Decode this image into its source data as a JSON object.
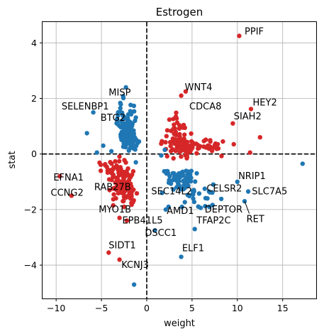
{
  "chart_data": {
    "type": "scatter",
    "title": "Estrogen",
    "xlabel": "weight",
    "ylabel": "stat",
    "xlim": [
      -11.5,
      18.7
    ],
    "ylim": [
      -5.2,
      4.75
    ],
    "xticks": [
      -10,
      -5,
      0,
      5,
      10,
      15
    ],
    "yticks": [
      -4,
      -2,
      0,
      2,
      4
    ],
    "grid": true,
    "colors": {
      "up": "#d62728",
      "down": "#1f77b4"
    },
    "reference_lines": {
      "x": 0,
      "y": 0,
      "style": "dashed"
    },
    "annotations": [
      {
        "label": "PPIF",
        "x": 10.8,
        "y": 4.3,
        "px": 10.2,
        "py": 4.25
      },
      {
        "label": "WNT4",
        "x": 4.2,
        "y": 2.3,
        "px": 4.3,
        "py": 2.25
      },
      {
        "label": "MISP",
        "x": -4.2,
        "y": 2.1,
        "px": -2.3,
        "py": 2.4
      },
      {
        "label": "SELENBP1",
        "x": -9.4,
        "y": 1.6,
        "px": -5.9,
        "py": 1.5
      },
      {
        "label": "CDCA8",
        "x": 4.7,
        "y": 1.6,
        "px": 3.8,
        "py": 2.1
      },
      {
        "label": "HEY2",
        "x": 11.7,
        "y": 1.75,
        "px": 11.5,
        "py": 1.62
      },
      {
        "label": "BTG2",
        "x": -5.1,
        "y": 1.2,
        "px": -2.7,
        "py": 1.05
      },
      {
        "label": "SIAH2",
        "x": 9.6,
        "y": 1.25,
        "px": 9.5,
        "py": 1.1
      },
      {
        "label": "EFNA1",
        "x": -10.3,
        "y": -0.95,
        "px": -9.6,
        "py": -0.8
      },
      {
        "label": "NRIP1",
        "x": 10.1,
        "y": -0.9,
        "px": 10.0,
        "py": -1.0
      },
      {
        "label": "CCNG2",
        "x": -10.6,
        "y": -1.5,
        "px": -8.3,
        "py": -1.5
      },
      {
        "label": "RAB27B",
        "x": -5.8,
        "y": -1.3,
        "px": -4.1,
        "py": -1.3
      },
      {
        "label": "SEC14L2",
        "x": 0.5,
        "y": -1.45,
        "px": 1.7,
        "py": -1.4
      },
      {
        "label": "CELSR2",
        "x": 6.6,
        "y": -1.35,
        "px": 6.4,
        "py": -1.25
      },
      {
        "label": "SLC7A5",
        "x": 11.6,
        "y": -1.45,
        "px": 11.2,
        "py": -1.35
      },
      {
        "label": "MYO1B",
        "x": -5.3,
        "y": -2.1,
        "px": -3.7,
        "py": -1.85
      },
      {
        "label": "DEPTOR",
        "x": 6.4,
        "y": -2.1,
        "px": 6.9,
        "py": -1.9
      },
      {
        "label": "AMD1",
        "x": 2.2,
        "y": -2.15,
        "px": 2.1,
        "py": -2.0
      },
      {
        "label": "RET",
        "x": 11.0,
        "y": -2.45,
        "px": 10.8,
        "py": -1.7
      },
      {
        "label": "EPB41L5",
        "x": -2.7,
        "y": -2.5,
        "px": -2.2,
        "py": -2.4
      },
      {
        "label": "TFAP2C",
        "x": 5.5,
        "y": -2.5,
        "px": 5.3,
        "py": -2.7
      },
      {
        "label": "DSCC1",
        "x": -0.2,
        "y": -2.95,
        "px": 0.9,
        "py": -2.75
      },
      {
        "label": "SIDT1",
        "x": -4.2,
        "y": -3.4,
        "px": -4.2,
        "py": -3.55
      },
      {
        "label": "ELF1",
        "x": 3.9,
        "y": -3.5,
        "px": 3.8,
        "py": -3.7
      },
      {
        "label": "KCNJ3",
        "x": -2.8,
        "y": -4.1,
        "px": -3.0,
        "py": -3.8
      }
    ]
  }
}
